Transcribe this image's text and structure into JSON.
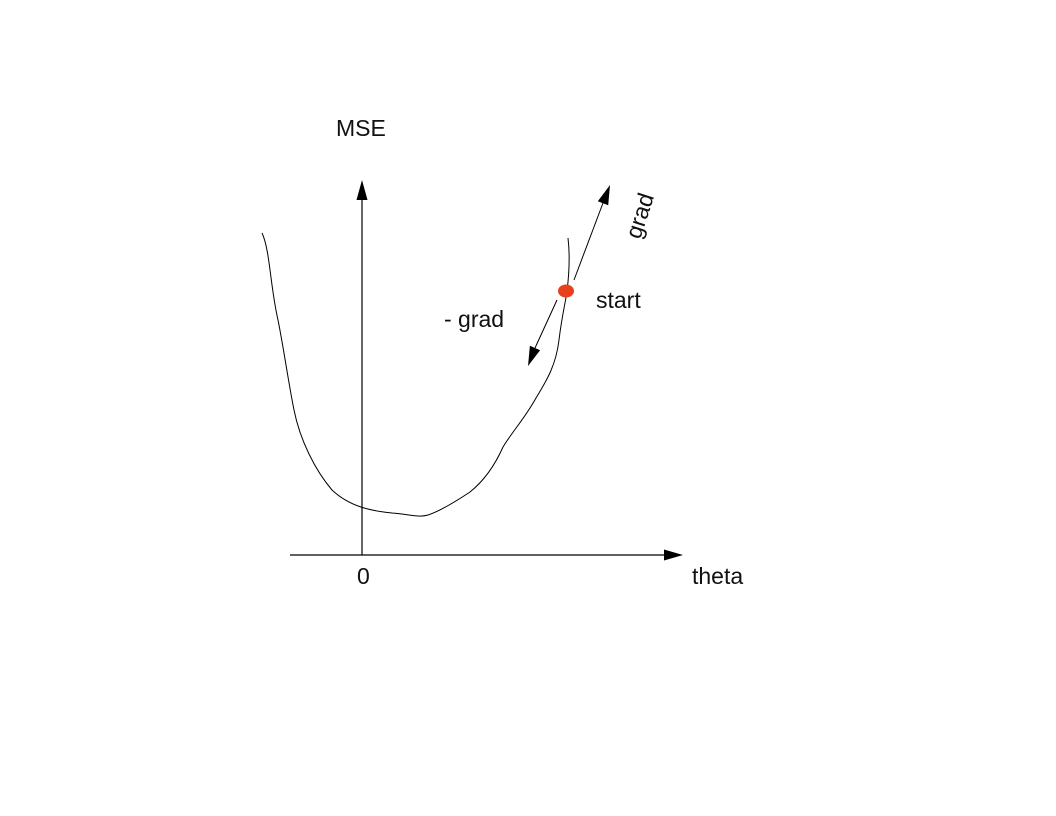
{
  "labels": {
    "y_axis": "MSE",
    "x_axis": "theta",
    "origin": "0",
    "start": "start",
    "gradient": "grad",
    "negative_gradient": "- grad"
  },
  "colors": {
    "start_point": "#e8401c",
    "lines": "#000000",
    "text": "#111111"
  }
}
